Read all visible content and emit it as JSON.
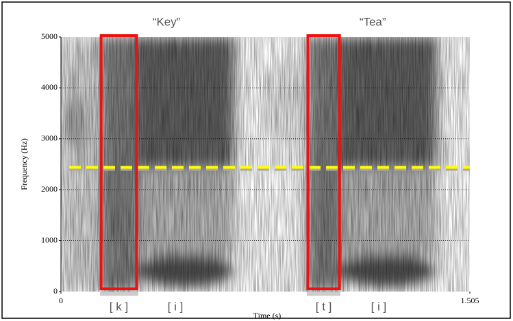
{
  "chart_data": {
    "type": "spectrogram",
    "xlabel": "Time (s)",
    "ylabel": "Frequency (Hz)",
    "xlim": [
      0,
      1.505
    ],
    "xticks": [
      0,
      1.505
    ],
    "ylim": [
      0,
      5000
    ],
    "yticks": [
      0,
      1000,
      2000,
      3000,
      4000,
      5000
    ],
    "grid": true,
    "words": [
      {
        "text": "“Key”",
        "start": 0.144,
        "end": 0.633
      },
      {
        "text": "“Tea”",
        "start": 0.905,
        "end": 1.39
      }
    ],
    "segments": [
      {
        "label": "[ k ]",
        "start": 0.144,
        "end": 0.282,
        "boxed": true
      },
      {
        "label": "[ i ]",
        "start": 0.282,
        "end": 0.56,
        "boxed": false
      },
      {
        "label": "[ t ]",
        "start": 0.905,
        "end": 1.029,
        "boxed": true
      },
      {
        "label": "[ i ]",
        "start": 1.029,
        "end": 1.31,
        "boxed": false
      }
    ],
    "box_color": "#ee1111",
    "threshold": {
      "value": 2440,
      "color": "#ffff00"
    }
  }
}
